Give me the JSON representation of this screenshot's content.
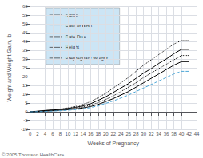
{
  "chart_data": {
    "type": "line",
    "xlabel": "Weeks of Pregnancy",
    "ylabel": "Weight and Weight Gain, lb",
    "x": [
      0,
      2,
      4,
      6,
      8,
      10,
      12,
      14,
      16,
      18,
      20,
      22,
      24,
      26,
      28,
      30,
      32,
      34,
      36,
      38,
      40,
      42
    ],
    "series": [
      {
        "color": "#000000",
        "line_style": "dotted",
        "values": [
          0,
          0.4,
          0.8,
          1.2,
          1.6,
          2.2,
          3.0,
          4.2,
          5.8,
          8.0,
          10.5,
          13.5,
          16.5,
          19.5,
          23.0,
          26.5,
          29.5,
          32.5,
          35.5,
          38.5,
          40.5,
          40.5
        ]
      },
      {
        "color": "#000000",
        "line_style": "dotted",
        "values": [
          0,
          0.2,
          0.5,
          0.8,
          1.1,
          1.5,
          2.0,
          2.8,
          3.8,
          5.2,
          7.0,
          9.0,
          11.5,
          14.0,
          16.5,
          19.5,
          22.0,
          24.5,
          27.0,
          29.5,
          32.0,
          32.0
        ]
      },
      {
        "color": "#000000",
        "line_style": "solid",
        "values": [
          0,
          0.3,
          0.7,
          1.0,
          1.4,
          1.9,
          2.5,
          3.4,
          4.6,
          6.5,
          8.5,
          11.0,
          13.5,
          16.0,
          19.0,
          22.0,
          24.5,
          27.5,
          30.0,
          33.0,
          35.5,
          35.5
        ]
      },
      {
        "color": "#000000",
        "line_style": "solid",
        "values": [
          0,
          0.2,
          0.4,
          0.6,
          0.9,
          1.2,
          1.6,
          2.2,
          3.0,
          4.2,
          5.8,
          7.5,
          9.5,
          11.5,
          14.0,
          16.5,
          19.0,
          21.5,
          24.0,
          26.5,
          28.5,
          28.5
        ]
      },
      {
        "color": "#4da6d6",
        "line_style": "dashed",
        "values": [
          0,
          0.1,
          0.2,
          0.4,
          0.6,
          0.9,
          1.2,
          1.7,
          2.4,
          3.4,
          4.8,
          6.2,
          7.8,
          9.5,
          11.5,
          13.5,
          15.5,
          17.5,
          19.5,
          21.5,
          23.0,
          23.0
        ]
      }
    ],
    "xlim": [
      0,
      44
    ],
    "ylim": [
      -10,
      60
    ],
    "xticks": [
      0,
      2,
      4,
      6,
      8,
      10,
      12,
      14,
      16,
      18,
      20,
      22,
      24,
      26,
      28,
      30,
      32,
      34,
      36,
      38,
      40,
      42,
      44
    ],
    "yticks": [
      -10,
      -5,
      0,
      5,
      10,
      15,
      20,
      25,
      30,
      35,
      40,
      45,
      50,
      55,
      60
    ],
    "grid": true,
    "annotations": [
      "Name",
      "Date of Birth",
      "Date Due",
      "Height",
      "Prepregnant Weight"
    ],
    "footnote": "© 2005 Thomson HealthCare"
  }
}
